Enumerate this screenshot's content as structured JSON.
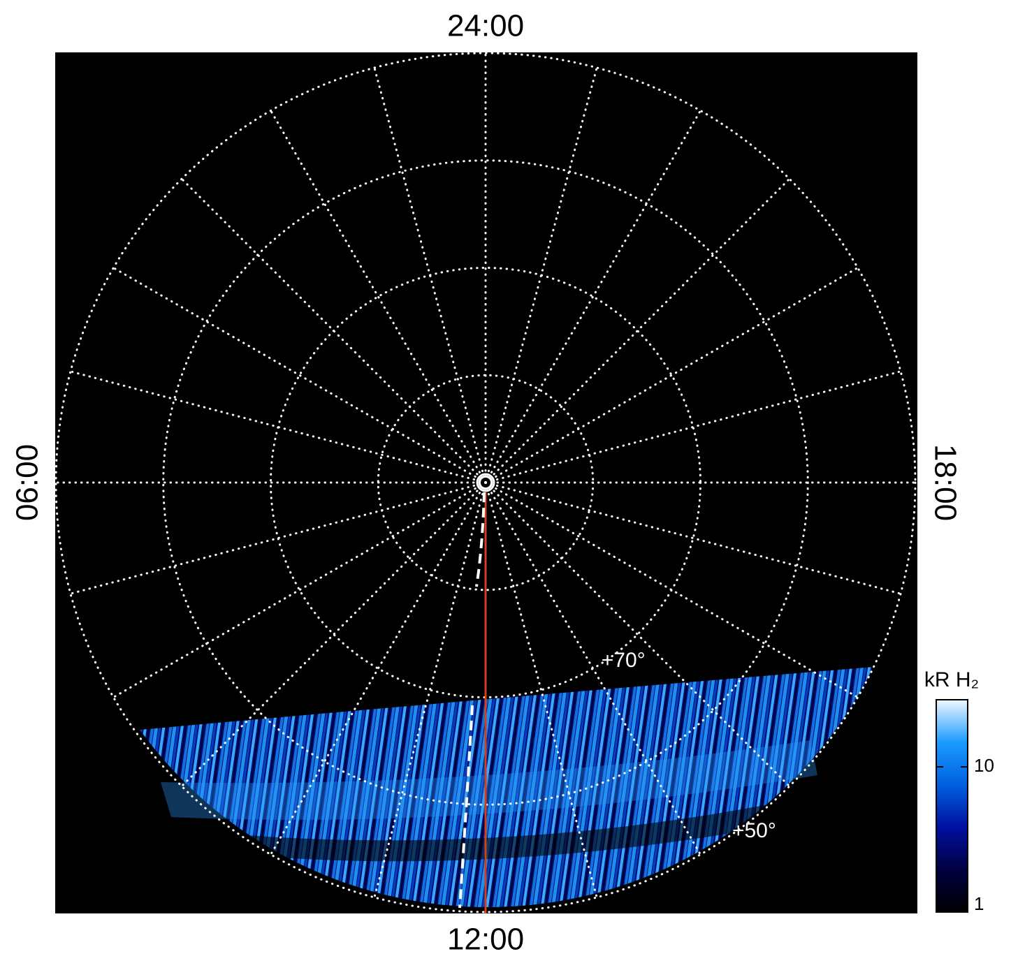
{
  "chart_data": {
    "type": "polar",
    "axis_labels": {
      "top": "24:00",
      "left": "06:00",
      "right": "18:00",
      "bottom": "12:00"
    },
    "rlim": [
      90,
      50
    ],
    "rticks": [
      80,
      70,
      60,
      50
    ],
    "grid": true,
    "mlt_grid_step": 1,
    "rtick_labels": [
      {
        "value": 70,
        "label": "+70°"
      },
      {
        "value": 50,
        "label": "+50°"
      }
    ],
    "colorbar": {
      "title": "kR H₂",
      "log": true,
      "zlim": [
        1,
        29
      ],
      "zticks": [
        1,
        10
      ],
      "colors": [
        "#000000",
        "#000040",
        "#0010a0",
        "#0060e0",
        "#1a9cff",
        "#f0f8ff"
      ]
    }
  }
}
